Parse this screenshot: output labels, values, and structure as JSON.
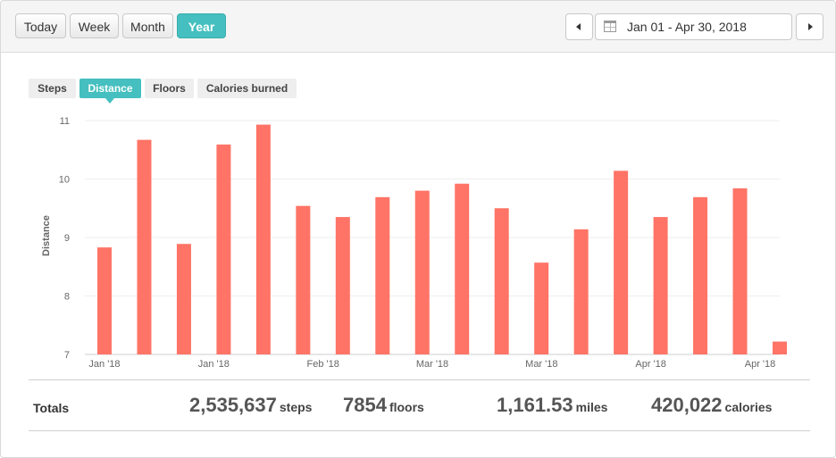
{
  "toolbar": {
    "range_buttons": [
      {
        "label": "Today",
        "active": false
      },
      {
        "label": "Week",
        "active": false
      },
      {
        "label": "Month",
        "active": false
      },
      {
        "label": "Year",
        "active": true
      }
    ],
    "date_range": "Jan 01 - Apr 30, 2018",
    "prev_icon": "caret-left-icon",
    "next_icon": "caret-right-icon",
    "calendar_icon": "calendar-icon"
  },
  "metric_tabs": [
    {
      "label": "Steps",
      "active": false
    },
    {
      "label": "Distance",
      "active": true
    },
    {
      "label": "Floors",
      "active": false
    },
    {
      "label": "Calories burned",
      "active": false
    }
  ],
  "colors": {
    "accent": "#45bfbf",
    "bar": "#ff7466"
  },
  "chart_data": {
    "type": "bar",
    "ylabel": "Distance",
    "ylim": [
      7,
      11
    ],
    "yticks": [
      "7",
      "8",
      "9",
      "10",
      "11"
    ],
    "x_tick_labels": [
      "Jan '18",
      "Jan '18",
      "Feb '18",
      "Mar '18",
      "Mar '18",
      "Apr '18",
      "Apr '18"
    ],
    "values": [
      8.83,
      10.67,
      8.89,
      10.59,
      10.93,
      9.54,
      9.35,
      9.69,
      9.8,
      9.92,
      9.5,
      8.57,
      9.14,
      10.14,
      9.35,
      9.69,
      9.84,
      7.22
    ],
    "grid": true
  },
  "totals": {
    "label": "Totals",
    "steps": {
      "value": "2,535,637",
      "unit": "steps"
    },
    "floors": {
      "value": "7854",
      "unit": "floors"
    },
    "miles": {
      "value": "1,161.53",
      "unit": "miles"
    },
    "calories": {
      "value": "420,022",
      "unit": "calories"
    }
  }
}
